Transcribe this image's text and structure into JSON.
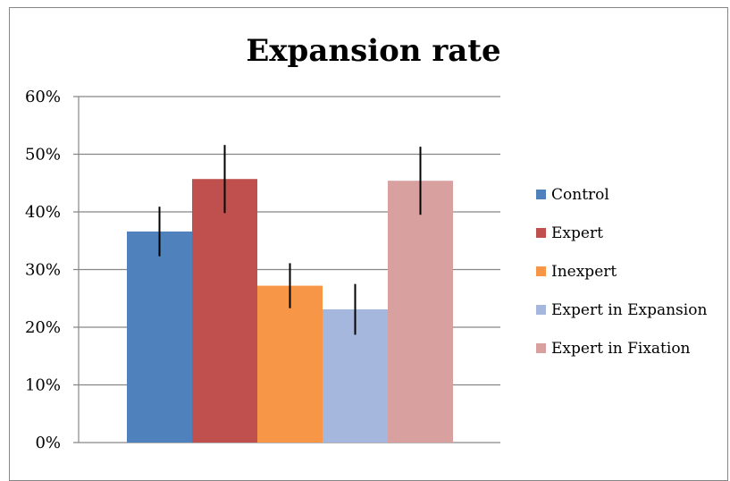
{
  "chart_data": {
    "type": "bar",
    "title": "Expansion rate",
    "xlabel": "",
    "ylabel": "",
    "ylim": [
      0,
      60
    ],
    "yticks": [
      "0%",
      "10%",
      "20%",
      "30%",
      "40%",
      "50%",
      "60%"
    ],
    "ytick_values": [
      0,
      10,
      20,
      30,
      40,
      50,
      60
    ],
    "grid": true,
    "legend_position": "right",
    "series": [
      {
        "name": "Control",
        "value": 36.6,
        "error": 4.3,
        "color": "#4f81bd"
      },
      {
        "name": "Expert",
        "value": 45.7,
        "error": 5.9,
        "color": "#c0504d"
      },
      {
        "name": "Inexpert",
        "value": 27.2,
        "error": 3.9,
        "color": "#f79646"
      },
      {
        "name": "Expert in Expansion",
        "value": 23.1,
        "error": 4.4,
        "color": "#a5b7dc"
      },
      {
        "name": "Expert in Fixation",
        "value": 45.4,
        "error": 5.9,
        "color": "#d9a0a0"
      }
    ]
  }
}
